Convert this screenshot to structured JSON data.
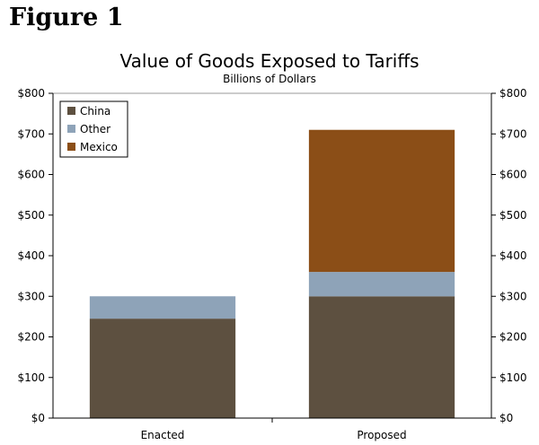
{
  "figure_label": "Figure 1",
  "colors": {
    "China": "#5d5040",
    "Other": "#8ea3b8",
    "Mexico": "#8b4e17",
    "axis": "#000000",
    "plot_border": "#9a9a9a"
  },
  "chart_data": {
    "type": "bar",
    "stacked": true,
    "title": "Value of Goods Exposed to Tariffs",
    "subtitle": "Billions of Dollars",
    "categories": [
      "Enacted",
      "Proposed"
    ],
    "series": [
      {
        "name": "China",
        "values": [
          245,
          300
        ]
      },
      {
        "name": "Other",
        "values": [
          55,
          60
        ]
      },
      {
        "name": "Mexico",
        "values": [
          0,
          350
        ]
      }
    ],
    "ylim": [
      0,
      800
    ],
    "yticks": [
      0,
      100,
      200,
      300,
      400,
      500,
      600,
      700,
      800
    ],
    "ytick_labels": [
      "$0",
      "$100",
      "$200",
      "$300",
      "$400",
      "$500",
      "$600",
      "$700",
      "$800"
    ],
    "secondary_y_axis": true,
    "legend": {
      "placement": "top-left",
      "entries": [
        "China",
        "Other",
        "Mexico"
      ]
    },
    "grid": false,
    "xlabel": "",
    "ylabel": ""
  }
}
